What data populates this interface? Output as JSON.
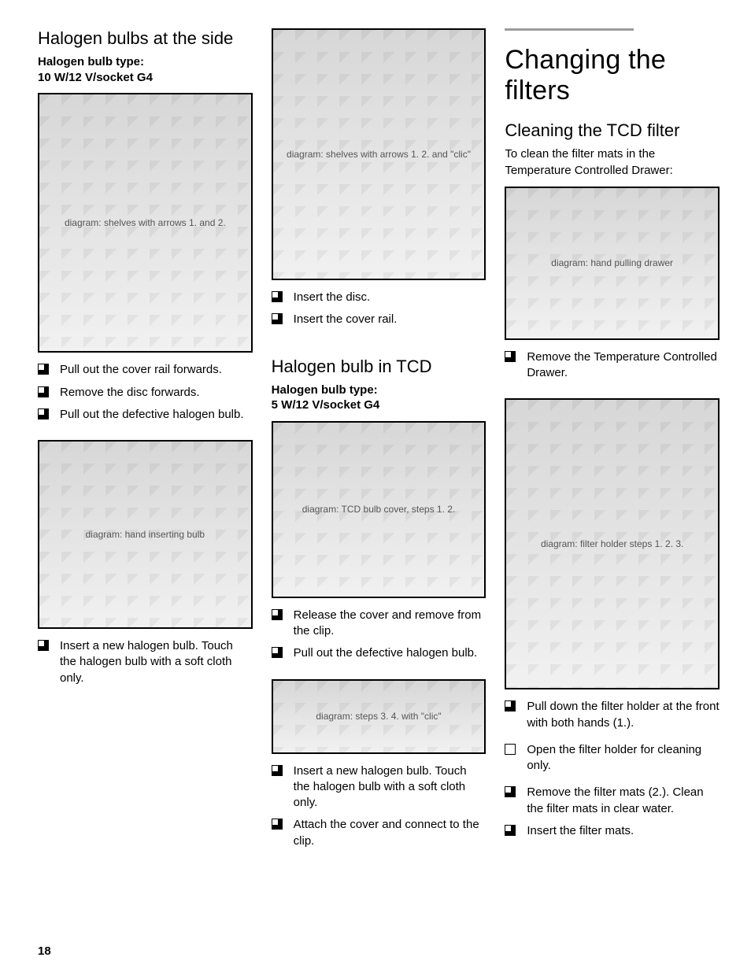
{
  "page_number": "18",
  "col1": {
    "heading": "Halogen bulbs at the side",
    "subtype": "Halogen bulb type:\n10 W/12 V/socket G4",
    "fig1_alt": "diagram: shelves with arrows 1. and 2.",
    "list1": [
      "Pull out the cover rail forwards.",
      "Remove the disc forwards.",
      "Pull out the defective halogen bulb."
    ],
    "fig2_alt": "diagram: hand inserting bulb",
    "list2": [
      "Insert a new halogen bulb. Touch the halogen bulb with a soft cloth only."
    ]
  },
  "col2": {
    "fig1_alt": "diagram: shelves with arrows 1. 2. and \"clic\"",
    "list1": [
      "Insert the disc.",
      "Insert the cover rail."
    ],
    "heading2": "Halogen bulb in TCD",
    "subtype2": "Halogen bulb type:\n5 W/12 V/socket G4",
    "fig2_alt": "diagram: TCD bulb cover, steps 1. 2.",
    "list2": [
      "Release the cover and remove from the clip.",
      "Pull out the defective halogen bulb."
    ],
    "fig3_alt": "diagram: steps 3. 4. with \"clic\"",
    "list3": [
      "Insert a new halogen bulb. Touch the halogen bulb with a soft cloth only.",
      "Attach the cover and connect to the clip."
    ]
  },
  "col3": {
    "title": "Changing the filters",
    "heading": "Cleaning the TCD filter",
    "intro": "To clean the filter mats in the Temperature Controlled Drawer:",
    "fig1_alt": "diagram: hand pulling drawer",
    "list1": [
      "Remove the Temperature Controlled Drawer."
    ],
    "fig2_alt": "diagram: filter holder steps 1. 2. 3.",
    "list2a": [
      "Pull down the filter holder at the front with both hands (1.)."
    ],
    "note": "Open the filter holder for cleaning only.",
    "list2b": [
      "Remove the filter mats (2.). Clean the filter mats in clear water.",
      "Insert the filter mats."
    ]
  },
  "fig_heights": {
    "c1f1": 330,
    "c1f2": 240,
    "c2f1": 320,
    "c2f2": 225,
    "c2f3": 95,
    "c3f1": 195,
    "c3f2": 370
  }
}
